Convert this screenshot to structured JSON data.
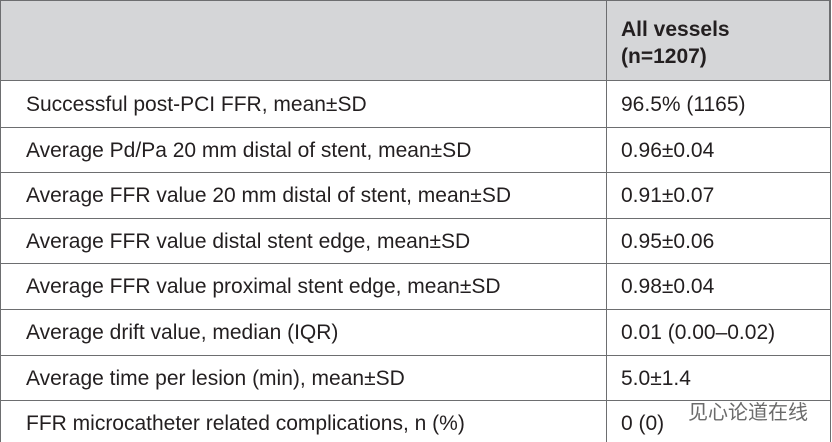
{
  "table": {
    "header": [
      "All vessels",
      "(n=1207)"
    ],
    "rows": [
      [
        "Successful post-PCI FFR, mean±SD",
        "96.5% (1165)"
      ],
      [
        "Average Pd/Pa 20 mm distal of stent, mean±SD",
        "0.96±0.04"
      ],
      [
        "Average FFR value 20 mm distal of stent, mean±SD",
        "0.91±0.07"
      ],
      [
        "Average FFR value distal stent edge, mean±SD",
        "0.95±0.06"
      ],
      [
        "Average FFR value proximal stent edge, mean±SD",
        "0.98±0.04"
      ],
      [
        "Average drift value, median (IQR)",
        "0.01 (0.00–0.02)"
      ],
      [
        "Average time per lesion (min), mean±SD",
        "5.0±1.4"
      ],
      [
        "FFR microcatheter related complications, n (%)",
        "0 (0)"
      ]
    ]
  },
  "watermark": "见心论道在线"
}
